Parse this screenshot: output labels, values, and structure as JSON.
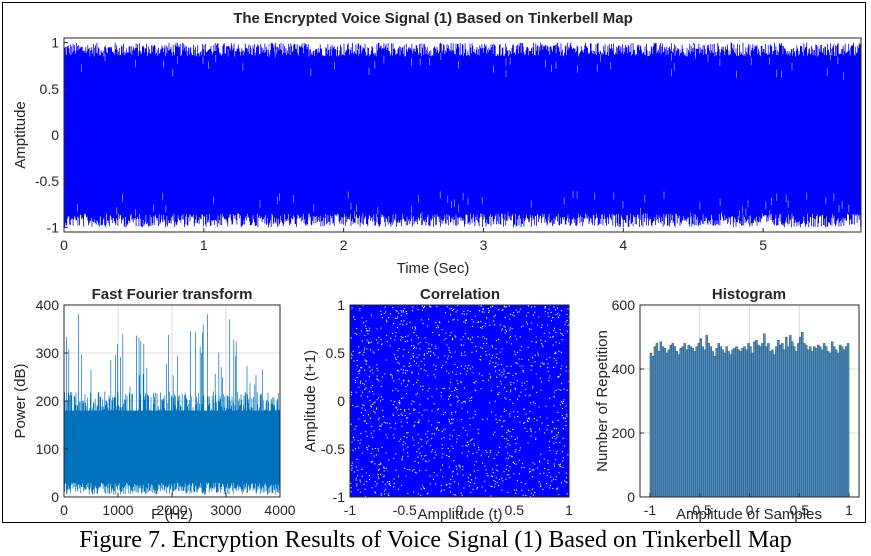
{
  "caption": "Figure 7. Encryption Results of Voice Signal (1) Based on Tinkerbell Map",
  "chart_data": [
    {
      "type": "line",
      "title": "The Encrypted Voice Signal (1) Based on Tinkerbell Map",
      "xlabel": "Time (Sec)",
      "ylabel": "Amptitude",
      "xlim": [
        0,
        5.7
      ],
      "ylim": [
        -1.05,
        1.05
      ],
      "xticks": [
        "0",
        "1",
        "2",
        "3",
        "4",
        "5"
      ],
      "yticks": [
        "-1",
        "-0.5",
        "0",
        "0.5",
        "1"
      ],
      "series": [
        {
          "values_description": "",
          "color": "#0000ff",
          "envelope": {
            "min": -1,
            "max": 1,
            "dense_band": [
              -0.85,
              0.85
            ]
          }
        }
      ],
      "grid": false
    },
    {
      "type": "line",
      "title": "Fast Fourier transform",
      "xlabel": "F (Hz)",
      "ylabel": "Power (dB)",
      "xlim": [
        0,
        4000
      ],
      "ylim": [
        0,
        400
      ],
      "xticks": [
        "0",
        "1000",
        "2000",
        "3000",
        "4000"
      ],
      "yticks": [
        "0",
        "100",
        "200",
        "300",
        "400"
      ],
      "series": [
        {
          "color": "#0072bd",
          "dense_band": [
            20,
            200
          ],
          "peak_max": 390
        }
      ],
      "grid": true
    },
    {
      "type": "scatter",
      "title": "Correlation",
      "xlabel": "Amplitude (t)",
      "ylabel": "Amplitude (t+1)",
      "xlim": [
        -1,
        1
      ],
      "ylim": [
        -1,
        1
      ],
      "xticks": [
        "-1",
        "-0.5",
        "0",
        "0.5",
        "1"
      ],
      "yticks": [
        "-1",
        "-0.5",
        "0",
        "0.5",
        "1"
      ],
      "series": [
        {
          "color": "#0000ff",
          "distribution": "uniform"
        }
      ],
      "grid": false
    },
    {
      "type": "bar",
      "title": "Histogram",
      "xlabel": "Amplitude of Samples",
      "ylabel": "Number of Repetition",
      "xlim": [
        -1.1,
        1.1
      ],
      "ylim": [
        0,
        600
      ],
      "xticks": [
        "-1",
        "-0.5",
        "0",
        "0.5",
        "1"
      ],
      "yticks": [
        "0",
        "200",
        "400",
        "600"
      ],
      "bin_range": [
        -1,
        1
      ],
      "values": [
        450,
        440,
        470,
        480,
        455,
        485,
        470,
        465,
        450,
        460,
        475,
        480,
        470,
        455,
        445,
        465,
        470,
        480,
        460,
        475,
        470,
        465,
        455,
        470,
        480,
        495,
        470,
        460,
        505,
        480,
        470,
        455,
        440,
        465,
        480,
        470,
        460,
        450,
        470,
        455,
        445,
        460,
        465,
        470,
        460,
        455,
        465,
        470,
        460,
        480,
        470,
        450,
        485,
        490,
        475,
        470,
        480,
        510,
        470,
        480,
        455,
        460,
        445,
        470,
        490,
        475,
        480,
        460,
        500,
        470,
        505,
        485,
        470,
        455,
        480,
        500,
        515,
        480,
        475,
        460,
        470,
        455,
        470,
        465,
        475,
        470,
        460,
        480,
        470,
        455,
        450,
        485,
        470,
        460,
        450,
        475,
        470,
        460,
        470,
        480
      ],
      "color": "#4d8fbf",
      "grid": true
    }
  ]
}
